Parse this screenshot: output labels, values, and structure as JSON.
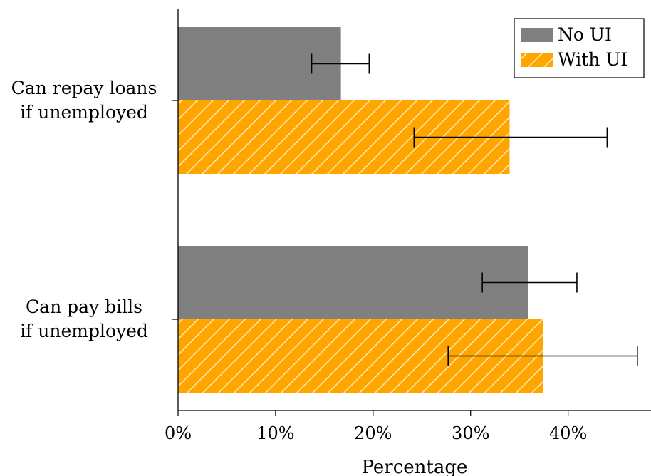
{
  "chart_data": {
    "type": "bar",
    "orientation": "horizontal",
    "categories": [
      [
        "Can repay loans",
        "if unemployed"
      ],
      [
        "Can pay bills",
        "if unemployed"
      ]
    ],
    "series": [
      {
        "name": "No UI",
        "color": "#808080",
        "pattern": "solid",
        "values": [
          16.7,
          35.9
        ],
        "error_low": [
          13.7,
          31.2
        ],
        "error_high": [
          19.6,
          40.9
        ]
      },
      {
        "name": "With UI",
        "color": "#ffa500",
        "pattern": "diagonal-hatch",
        "values": [
          34.0,
          37.4
        ],
        "error_low": [
          24.2,
          27.7
        ],
        "error_high": [
          44.0,
          47.1
        ]
      }
    ],
    "xlabel": "Percentage",
    "xlim": [
      0,
      48.5
    ],
    "xticks": [
      0,
      10,
      20,
      30,
      40
    ],
    "xtick_labels": [
      "0%",
      "10%",
      "20%",
      "30%",
      "40%"
    ],
    "legend_position": "top-right",
    "grid": false
  }
}
